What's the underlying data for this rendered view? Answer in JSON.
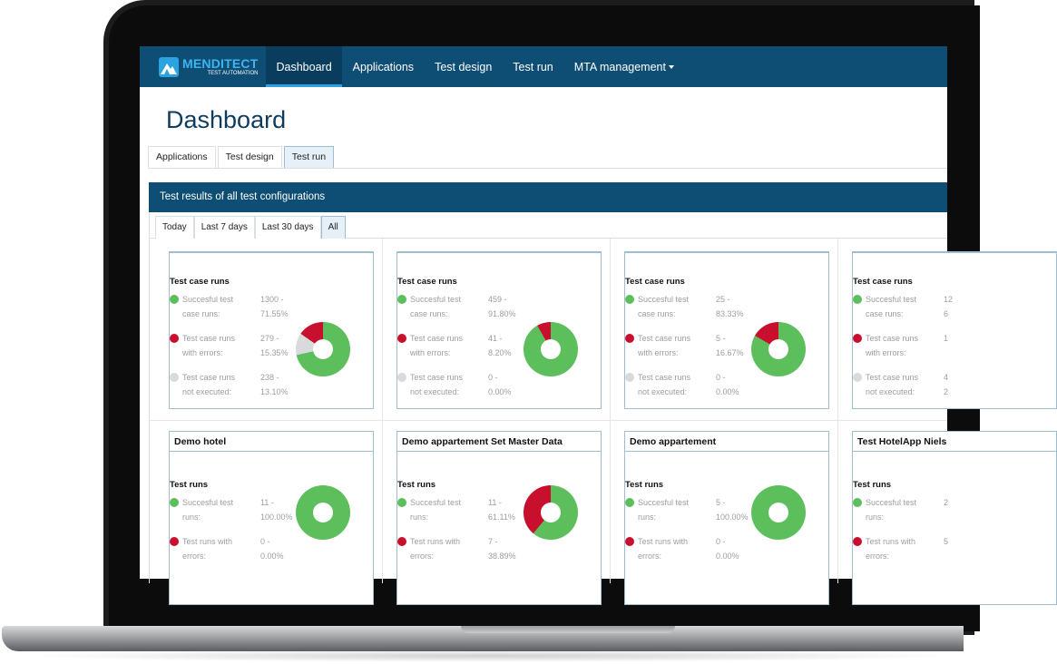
{
  "brand": {
    "name": "MENDITECT",
    "sub": "TEST AUTOMATION"
  },
  "nav": [
    {
      "label": "Dashboard",
      "active": true
    },
    {
      "label": "Applications",
      "active": false
    },
    {
      "label": "Test design",
      "active": false
    },
    {
      "label": "Test run",
      "active": false
    },
    {
      "label": "MTA management",
      "active": false,
      "dropdown": true
    }
  ],
  "page_title": "Dashboard",
  "tabs": [
    {
      "label": "Applications",
      "active": false
    },
    {
      "label": "Test design",
      "active": false
    },
    {
      "label": "Test run",
      "active": true
    }
  ],
  "panel_title": "Test results of all test configurations",
  "filters": [
    {
      "label": "Today",
      "active": false
    },
    {
      "label": "Last 7 days",
      "active": false
    },
    {
      "label": "Last 30 days",
      "active": false
    },
    {
      "label": "All",
      "active": true
    }
  ],
  "colors": {
    "success": "#5cbf5c",
    "error": "#c8102e",
    "not_executed": "#d9dadb",
    "brand": "#0e4d74",
    "accent": "#2aa3e0"
  },
  "case_cards": [
    {
      "section": "Test case runs",
      "rows": [
        {
          "l1": "Succesful test",
          "l2": "case runs:",
          "v1": "1300 -",
          "v2": "71.55%",
          "status": "green"
        },
        {
          "l1": "Test case runs",
          "l2": "with errors:",
          "v1": "279 -",
          "v2": "15.35%",
          "status": "red"
        },
        {
          "l1": "Test case runs",
          "l2": "not executed:",
          "v1": "238 -",
          "v2": "13.10%",
          "status": "grey"
        }
      ],
      "pct": [
        71.55,
        15.35,
        13.1
      ]
    },
    {
      "section": "Test case runs",
      "rows": [
        {
          "l1": "Succesful test",
          "l2": "case runs:",
          "v1": "459 -",
          "v2": "91.80%",
          "status": "green"
        },
        {
          "l1": "Test case runs",
          "l2": "with errors:",
          "v1": "41 -",
          "v2": "8.20%",
          "status": "red"
        },
        {
          "l1": "Test case runs",
          "l2": "not executed:",
          "v1": "0 -",
          "v2": "0.00%",
          "status": "grey"
        }
      ],
      "pct": [
        91.8,
        8.2,
        0
      ]
    },
    {
      "section": "Test case runs",
      "rows": [
        {
          "l1": "Succesful test",
          "l2": "case runs:",
          "v1": "25 -",
          "v2": "83.33%",
          "status": "green"
        },
        {
          "l1": "Test case runs",
          "l2": "with errors:",
          "v1": "5 -",
          "v2": "16.67%",
          "status": "red"
        },
        {
          "l1": "Test case runs",
          "l2": "not executed:",
          "v1": "0 -",
          "v2": "0.00%",
          "status": "grey"
        }
      ],
      "pct": [
        83.33,
        16.67,
        0
      ]
    },
    {
      "section": "Test case runs",
      "rows": [
        {
          "l1": "Succesful test",
          "l2": "case runs:",
          "v1": "12",
          "v2": "6",
          "status": "green"
        },
        {
          "l1": "Test case runs",
          "l2": "with errors:",
          "v1": "1",
          "v2": "",
          "status": "red"
        },
        {
          "l1": "Test case runs",
          "l2": "not executed:",
          "v1": "4",
          "v2": "2",
          "status": "grey"
        }
      ],
      "pct": null
    }
  ],
  "app_cards": [
    {
      "title": "Demo hotel",
      "section": "Test runs",
      "rows": [
        {
          "l1": "Succesful test",
          "l2": "runs:",
          "v1": "11 -",
          "v2": "100.00%",
          "status": "green"
        },
        {
          "l1": "Test runs with",
          "l2": "errors:",
          "v1": "0 -",
          "v2": "0.00%",
          "status": "red"
        }
      ],
      "pct": [
        100,
        0,
        0
      ]
    },
    {
      "title": "Demo appartement Set Master Data",
      "section": "Test runs",
      "rows": [
        {
          "l1": "Succesful test",
          "l2": "runs:",
          "v1": "11 -",
          "v2": "61.11%",
          "status": "green"
        },
        {
          "l1": "Test runs with",
          "l2": "errors:",
          "v1": "7 -",
          "v2": "38.89%",
          "status": "red"
        }
      ],
      "pct": [
        61.11,
        38.89,
        0
      ]
    },
    {
      "title": "Demo appartement",
      "section": "Test runs",
      "rows": [
        {
          "l1": "Succesful test",
          "l2": "runs:",
          "v1": "5 -",
          "v2": "100.00%",
          "status": "green"
        },
        {
          "l1": "Test runs with",
          "l2": "errors:",
          "v1": "0 -",
          "v2": "0.00%",
          "status": "red"
        }
      ],
      "pct": [
        100,
        0,
        0
      ]
    },
    {
      "title": "Test HotelApp Niels",
      "section": "Test runs",
      "rows": [
        {
          "l1": "Succesful test",
          "l2": "runs:",
          "v1": "2",
          "v2": "",
          "status": "green"
        },
        {
          "l1": "Test runs with",
          "l2": "errors:",
          "v1": "5",
          "v2": "",
          "status": "red"
        }
      ],
      "pct": null
    }
  ]
}
